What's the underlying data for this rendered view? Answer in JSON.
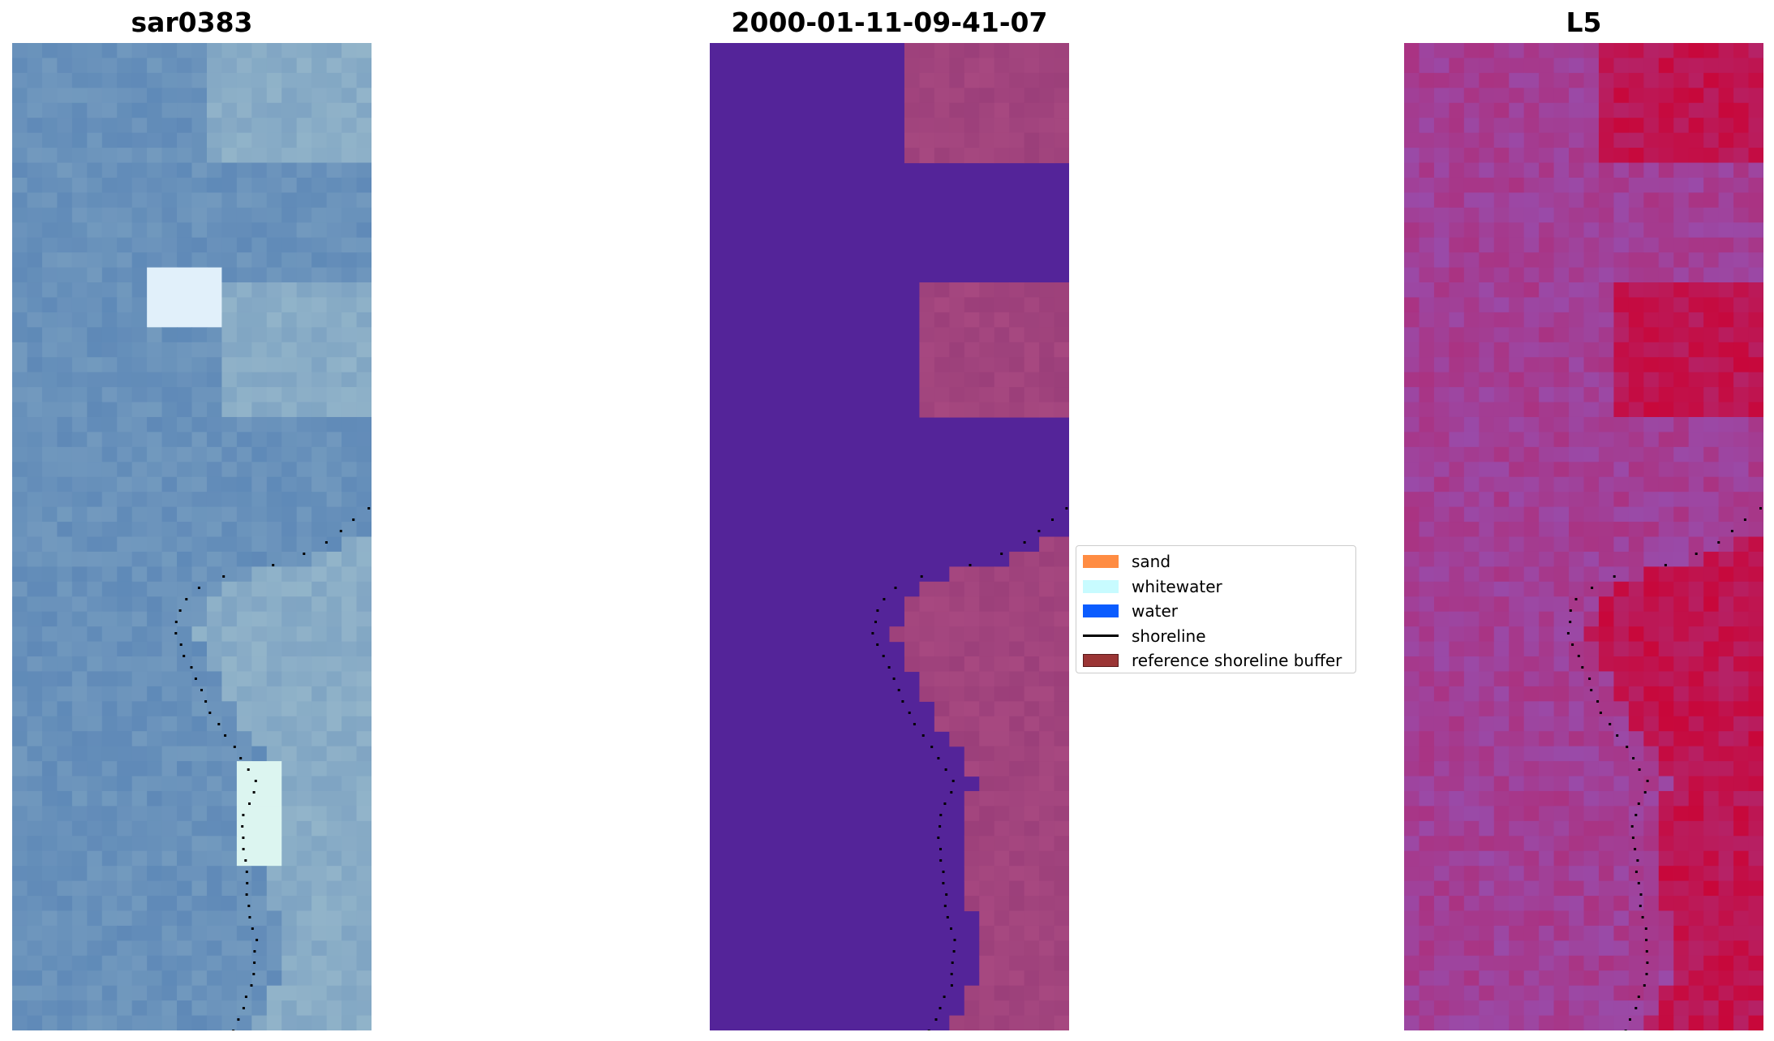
{
  "panels": {
    "left_title": "sar0383",
    "center_title": "2000-01-11-09-41-07",
    "right_title": "L5"
  },
  "legend": {
    "items": [
      {
        "label": "sand",
        "kind": "patch",
        "color": "#ff8c42"
      },
      {
        "label": "whitewater",
        "kind": "patch",
        "color": "#c8fbff"
      },
      {
        "label": "water",
        "kind": "patch",
        "color": "#0a5cff"
      },
      {
        "label": "shoreline",
        "kind": "line",
        "color": "#000000"
      },
      {
        "label": "reference shoreline buffer",
        "kind": "patch",
        "color": "#9b3535"
      }
    ]
  },
  "colors": {
    "classification_background": "#542499",
    "reference_buffer_tint": "#9b3f7a",
    "rgb_base": "#5b86b6",
    "index_base": "#9a4aa8",
    "index_high": "#c8073a"
  }
}
